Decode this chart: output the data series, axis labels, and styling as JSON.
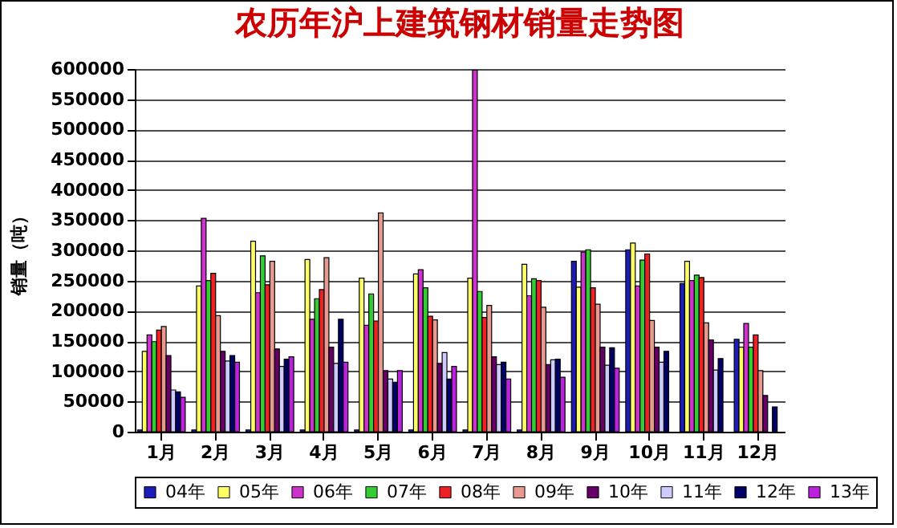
{
  "chart_data": {
    "type": "bar",
    "title": "农历年沪上建筑钢材销量走势图",
    "ylabel": "销量（吨）",
    "categories": [
      "1月",
      "2月",
      "3月",
      "4月",
      "5月",
      "6月",
      "7月",
      "8月",
      "9月",
      "10月",
      "11月",
      "12月"
    ],
    "ylim": [
      0,
      600000
    ],
    "yticks": [
      0,
      50000,
      100000,
      150000,
      200000,
      250000,
      300000,
      350000,
      400000,
      450000,
      500000,
      550000,
      600000
    ],
    "grid": "y",
    "legend": "bottom",
    "series": [
      {
        "name": "04年",
        "color": "#1c1cb8",
        "values": [
          3000,
          3000,
          3000,
          3000,
          3000,
          3000,
          3000,
          3000,
          282000,
          301000,
          245000,
          153000
        ]
      },
      {
        "name": "05年",
        "color": "#ffff66",
        "values": [
          133000,
          241000,
          315000,
          285000,
          254000,
          261000,
          254000,
          277000,
          239000,
          312000,
          282000,
          140000
        ]
      },
      {
        "name": "06年",
        "color": "#cc33cc",
        "values": [
          160000,
          353000,
          230000,
          186000,
          176000,
          268000,
          598000,
          225000,
          297000,
          241000,
          250000,
          179000
        ]
      },
      {
        "name": "07年",
        "color": "#33cc33",
        "values": [
          149000,
          250000,
          291000,
          220000,
          228000,
          238000,
          232000,
          253000,
          301000,
          284000,
          259000,
          140000
        ]
      },
      {
        "name": "08年",
        "color": "#ee2222",
        "values": [
          168000,
          262000,
          243000,
          235000,
          183000,
          191000,
          189000,
          250000,
          238000,
          294000,
          255000,
          160000
        ]
      },
      {
        "name": "09年",
        "color": "#e89a90",
        "values": [
          174000,
          192000,
          282000,
          288000,
          362000,
          185000,
          209000,
          206000,
          211000,
          184000,
          180000,
          101000
        ]
      },
      {
        "name": "10年",
        "color": "#660066",
        "values": [
          126000,
          133000,
          137000,
          140000,
          101000,
          113000,
          124000,
          111000,
          140000,
          140000,
          152000,
          60000
        ]
      },
      {
        "name": "11年",
        "color": "#ccccff",
        "values": [
          69000,
          117000,
          108000,
          113000,
          87000,
          131000,
          111000,
          119000,
          110000,
          115000,
          102000,
          null
        ]
      },
      {
        "name": "12年",
        "color": "#000066",
        "values": [
          66000,
          126000,
          120000,
          186000,
          82000,
          87000,
          115000,
          120000,
          139000,
          133000,
          121000,
          41000
        ]
      },
      {
        "name": "13年",
        "color": "#bb22dd",
        "values": [
          57000,
          115000,
          124000,
          115000,
          101000,
          108000,
          87000,
          90000,
          105000,
          null,
          null,
          null
        ]
      }
    ]
  }
}
